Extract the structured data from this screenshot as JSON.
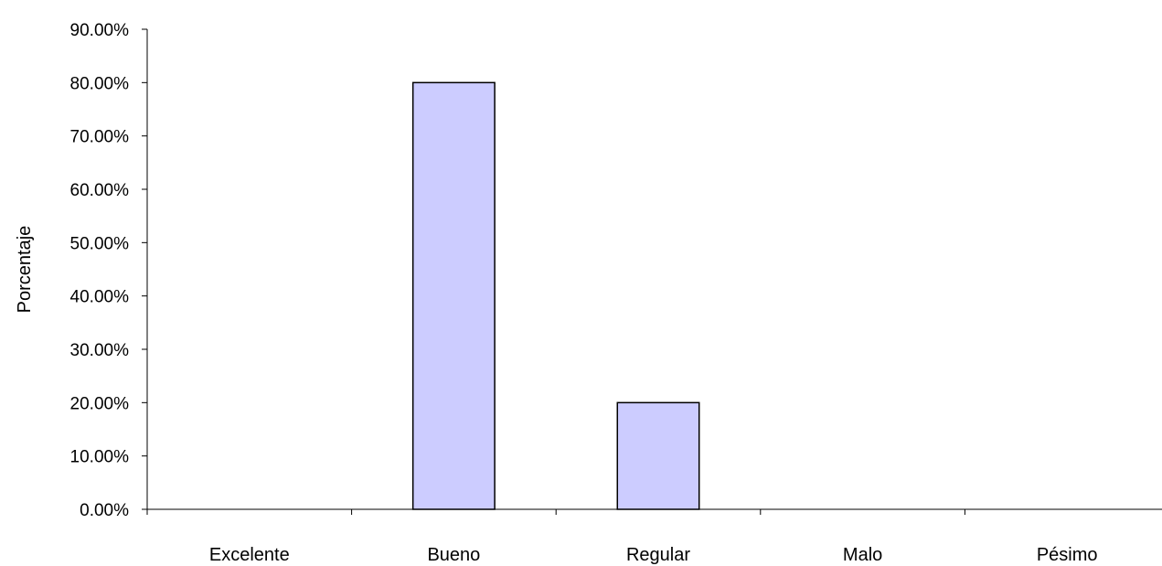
{
  "chart_data": {
    "type": "bar",
    "categories": [
      "Excelente",
      "Bueno",
      "Regular",
      "Malo",
      "Pésimo"
    ],
    "values": [
      0,
      80,
      20,
      0,
      0
    ],
    "ylabel": "Porcentaje",
    "xlabel": "",
    "ylim": [
      0,
      90
    ],
    "yticks": [
      0,
      10,
      20,
      30,
      40,
      50,
      60,
      70,
      80,
      90
    ],
    "ytick_labels": [
      "0.00%",
      "10.00%",
      "20.00%",
      "30.00%",
      "40.00%",
      "50.00%",
      "60.00%",
      "70.00%",
      "80.00%",
      "90.00%"
    ],
    "grid": false,
    "bar_color": "#CCCCFF",
    "bar_edge_color": "#000000"
  }
}
